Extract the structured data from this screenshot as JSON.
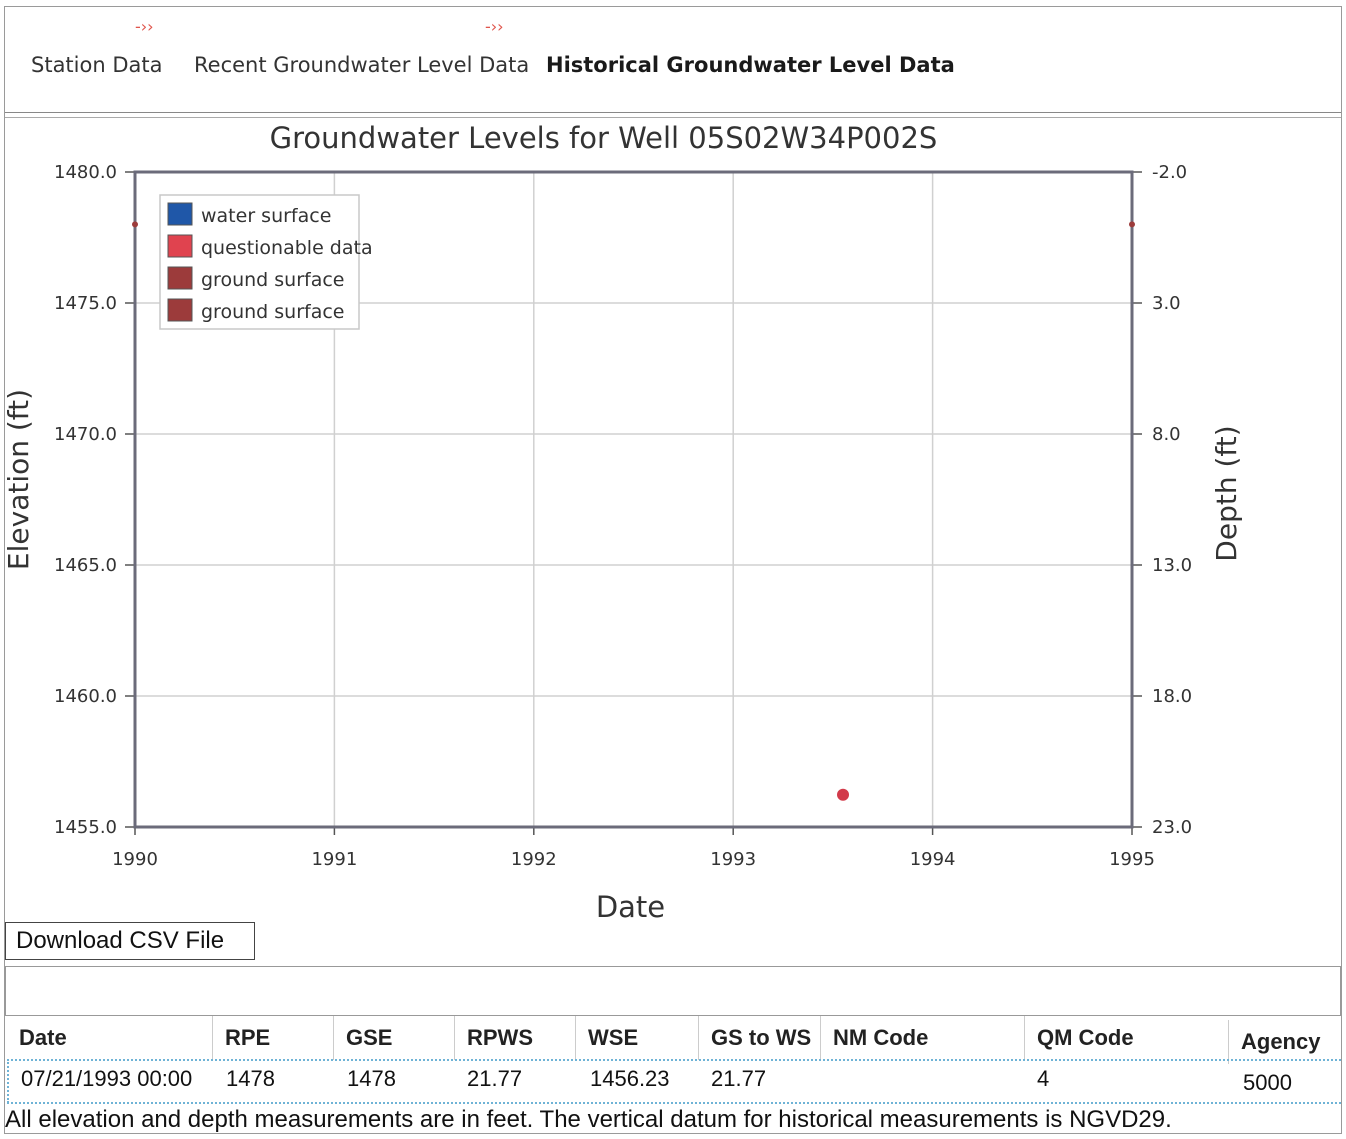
{
  "tabs": [
    {
      "label": "Station Data"
    },
    {
      "label": "Recent Groundwater Level Data"
    },
    {
      "label": "Historical Groundwater Level Data",
      "active": true
    }
  ],
  "chart_data": {
    "type": "scatter",
    "title": "Groundwater Levels for Well 05S02W34P002S",
    "xlabel": "Date",
    "ylabel": "Elevation (ft)",
    "y2label": "Depth (ft)",
    "xlim": [
      1990,
      1995
    ],
    "x_ticks": [
      "1990",
      "1991",
      "1992",
      "1993",
      "1994",
      "1995"
    ],
    "ylim": [
      1455.0,
      1480.0
    ],
    "y_ticks": [
      "1480.0",
      "1475.0",
      "1470.0",
      "1465.0",
      "1460.0",
      "1455.0"
    ],
    "y2lim": [
      -2.0,
      23.0
    ],
    "y2_ticks": [
      "-2.0",
      "3.0",
      "8.0",
      "13.0",
      "18.0",
      "23.0"
    ],
    "grid": true,
    "legend_position": "top-left",
    "legend": [
      {
        "name": "water surface",
        "color": "#1f57a8"
      },
      {
        "name": "questionable data",
        "color": "#e0434f"
      },
      {
        "name": "ground surface",
        "color": "#9c3b3b"
      },
      {
        "name": "ground surface",
        "color": "#9c3b3b"
      }
    ],
    "series": [
      {
        "name": "questionable data",
        "color": "#d23a4a",
        "points": [
          {
            "x": "1993-07-21",
            "y": 1456.23
          }
        ]
      },
      {
        "name": "ground surface",
        "color": "#9c3b3b",
        "points": [
          {
            "x": "1990-01-01",
            "y": 1478
          },
          {
            "x": "1995-01-01",
            "y": 1478
          }
        ]
      }
    ]
  },
  "download_label": "Download CSV File",
  "table": {
    "headers": [
      "Date",
      "RPE",
      "GSE",
      "RPWS",
      "WSE",
      "GS to WS",
      "NM Code",
      "QM Code",
      "Agency"
    ],
    "rows": [
      [
        "07/21/1993 00:00",
        "1478",
        "1478",
        "21.77",
        "1456.23",
        "21.77",
        "",
        "4",
        "5000"
      ]
    ]
  },
  "footnote": "All elevation and depth measurements are in feet. The vertical datum for historical measurements is NGVD29."
}
